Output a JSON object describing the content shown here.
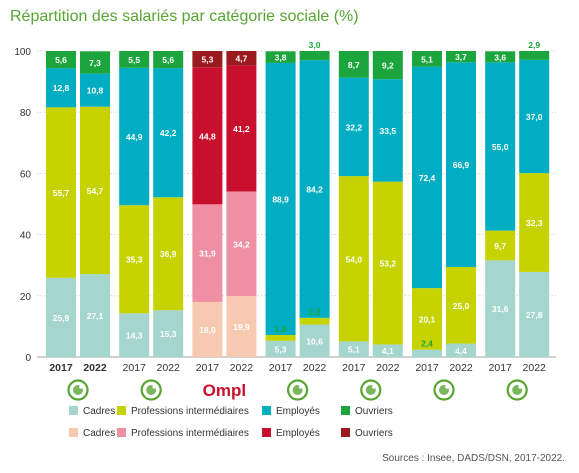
{
  "title": "Répartition des salariés par catégorie sociale (%)",
  "source": "Sources : Insee, DADS/DSN, 2017-2022.",
  "colors": {
    "cadres": "#a5d6cd",
    "professions": "#c6d300",
    "employes": "#00adc2",
    "ouvriers": "#1ca53c",
    "ompl_cadres": "#f8c9b1",
    "ompl_professions": "#ef8fa3",
    "ompl_employes": "#c8102e",
    "ompl_ouvriers": "#9b1a1f",
    "axis_text": "#333333",
    "grid": "#cfcfcf",
    "icon_green": "#58a533"
  },
  "legend_rows": [
    [
      {
        "label": "Cadres",
        "color": "#a5d6cd"
      },
      {
        "label": "Professions intermédiaires",
        "color": "#c6d300"
      },
      {
        "label": "Employés",
        "color": "#00adc2"
      },
      {
        "label": "Ouvriers",
        "color": "#1ca53c"
      }
    ],
    [
      {
        "label": "Cadres",
        "color": "#f8c9b1"
      },
      {
        "label": "Professions intermédiaires",
        "color": "#ef8fa3"
      },
      {
        "label": "Employés",
        "color": "#c8102e"
      },
      {
        "label": "Ouvriers",
        "color": "#9b1a1f"
      }
    ]
  ],
  "chart_data": {
    "type": "bar",
    "stacked": true,
    "title": "Répartition des salariés par catégorie sociale (%)",
    "ylim": [
      0,
      100
    ],
    "yticks": [
      0,
      20,
      40,
      60,
      80,
      100
    ],
    "grid": true,
    "legend_position": "bottom",
    "stack_order": [
      "Cadres",
      "Professions intermédiaires",
      "Employés",
      "Ouvriers"
    ],
    "groups": [
      {
        "icon": "scissors-icon",
        "palette": "default",
        "bold": true,
        "bars": [
          {
            "year": "2017",
            "values": [
              25.9,
              55.7,
              12.8,
              5.6
            ]
          },
          {
            "year": "2022",
            "values": [
              27.1,
              54.7,
              10.8,
              7.3
            ]
          }
        ]
      },
      {
        "icon": "medical-cross-icon",
        "palette": "default",
        "bars": [
          {
            "year": "2017",
            "values": [
              14.3,
              35.3,
              44.9,
              5.5
            ]
          },
          {
            "year": "2022",
            "values": [
              15.3,
              36.9,
              42.2,
              5.6
            ]
          }
        ]
      },
      {
        "logo": "Ompl",
        "palette": "ompl",
        "bars": [
          {
            "year": "2017",
            "values": [
              18.0,
              31.9,
              44.8,
              5.3
            ]
          },
          {
            "year": "2022",
            "values": [
              19.9,
              34.2,
              41.2,
              4.7
            ]
          }
        ]
      },
      {
        "icon": "checkmark-shield-icon",
        "palette": "default",
        "bars": [
          {
            "year": "2017",
            "values": [
              5.3,
              1.9,
              88.9,
              3.8
            ]
          },
          {
            "year": "2022",
            "values": [
              10.6,
              2.2,
              84.2,
              3.0
            ]
          }
        ]
      },
      {
        "icon": "droplet-icon",
        "palette": "default",
        "bars": [
          {
            "year": "2017",
            "values": [
              5.1,
              54.0,
              32.2,
              8.7
            ]
          },
          {
            "year": "2022",
            "values": [
              4.1,
              53.2,
              33.5,
              9.2
            ]
          }
        ]
      },
      {
        "icon": "paw-icon",
        "palette": "default",
        "bars": [
          {
            "year": "2017",
            "values": [
              2.4,
              20.1,
              72.4,
              5.1
            ]
          },
          {
            "year": "2022",
            "values": [
              4.4,
              25.0,
              66.9,
              3.7
            ]
          }
        ]
      },
      {
        "icon": "leaf-icon",
        "palette": "default",
        "bars": [
          {
            "year": "2017",
            "values": [
              31.6,
              9.7,
              55.0,
              3.6
            ]
          },
          {
            "year": "2022",
            "values": [
              27.8,
              32.3,
              37.0,
              2.9
            ]
          }
        ]
      }
    ]
  }
}
